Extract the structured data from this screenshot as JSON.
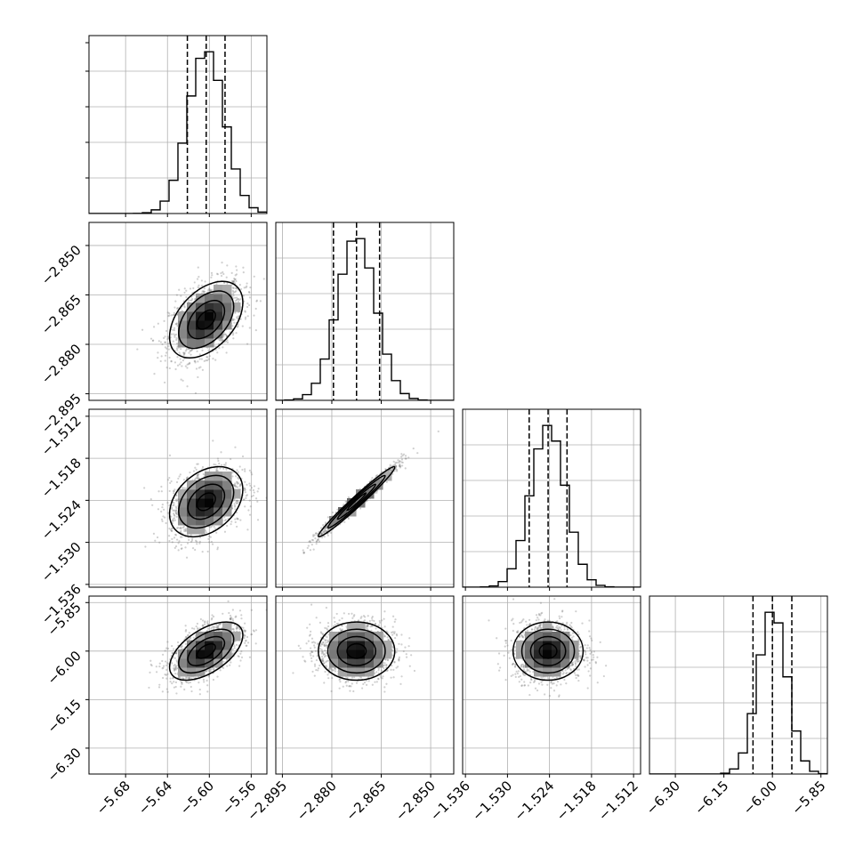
{
  "chart_data": {
    "type": "corner",
    "description_of_panels": "Lower-triangular corner plot of 4 parameters: diagonal panels are 1D histograms with dashed quantile lines; off-diagonal panels are 2D scatter/density plots with contour levels.",
    "grid": true,
    "parameters": [
      {
        "index": 0,
        "range": [
          -5.715,
          -5.545
        ],
        "ticks": [
          -5.68,
          -5.64,
          -5.6,
          -5.56
        ],
        "tick_labels": [
          "−5.68",
          "−5.64",
          "−5.60",
          "−5.56"
        ],
        "mean": -5.603,
        "sigma": 0.0175,
        "quantiles": [
          -5.621,
          -5.603,
          -5.585
        ]
      },
      {
        "index": 1,
        "range": [
          -2.897,
          -2.843
        ],
        "ticks": [
          -2.895,
          -2.88,
          -2.865,
          -2.85
        ],
        "tick_labels": [
          "−2.895",
          "−2.880",
          "−2.865",
          "−2.850"
        ],
        "mean": -2.8725,
        "sigma": 0.0058,
        "quantiles": [
          -2.8795,
          -2.8725,
          -2.8655
        ]
      },
      {
        "index": 2,
        "range": [
          -1.5364,
          -1.511
        ],
        "ticks": [
          -1.536,
          -1.53,
          -1.524,
          -1.518,
          -1.512
        ],
        "tick_labels": [
          "−1.536",
          "−1.530",
          "−1.524",
          "−1.518",
          "−1.512"
        ],
        "mean": -1.5242,
        "sigma": 0.0025,
        "quantiles": [
          -1.5269,
          -1.5242,
          -1.5215
        ]
      },
      {
        "index": 3,
        "range": [
          -6.38,
          -5.83
        ],
        "ticks": [
          -6.3,
          -6.15,
          -6.0,
          -5.85
        ],
        "tick_labels": [
          "−6.30",
          "−6.15",
          "−6.00",
          "−5.85"
        ],
        "mean": -6.0,
        "sigma": 0.045,
        "quantiles": [
          -6.06,
          -6.0,
          -5.94
        ]
      }
    ],
    "correlations": [
      {
        "pair": [
          0,
          1
        ],
        "rho": 0.45
      },
      {
        "pair": [
          0,
          2
        ],
        "rho": 0.35
      },
      {
        "pair": [
          1,
          2
        ],
        "rho": 0.98
      },
      {
        "pair": [
          0,
          3
        ],
        "rho": 0.55
      },
      {
        "pair": [
          1,
          3
        ],
        "rho": 0.0
      },
      {
        "pair": [
          2,
          3
        ],
        "rho": 0.0
      }
    ],
    "histogram_bins": 20,
    "contour_levels_sigma": [
      0.5,
      1.0,
      1.5,
      2.0
    ],
    "colors": {
      "line": "#000000",
      "scatter": "#777777",
      "grid": "#b0b0b0",
      "background": "#ffffff"
    }
  }
}
